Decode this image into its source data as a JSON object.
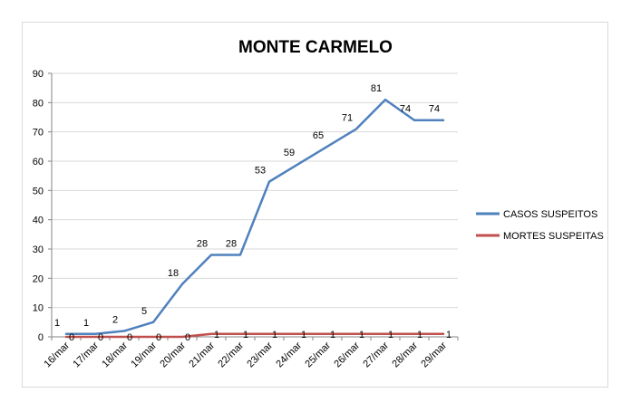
{
  "chart_data": {
    "type": "line",
    "title": "MONTE CARMELO",
    "xlabel": "",
    "ylabel": "",
    "categories": [
      "16/mar",
      "17/mar",
      "18/mar",
      "19/mar",
      "20/mar",
      "21/mar",
      "22/mar",
      "23/mar",
      "24/mar",
      "25/mar",
      "26/mar",
      "27/mar",
      "28/mar",
      "29/mar"
    ],
    "ylim": [
      0,
      90
    ],
    "yticks": [
      0,
      10,
      20,
      30,
      40,
      50,
      60,
      70,
      80,
      90
    ],
    "grid": true,
    "legend_position": "right",
    "series": [
      {
        "name": "CASOS SUSPEITOS",
        "color": "#4F81BD",
        "values": [
          1,
          1,
          2,
          5,
          18,
          28,
          28,
          53,
          59,
          65,
          71,
          81,
          74,
          74
        ],
        "labels": [
          "1",
          "1",
          "2",
          "5",
          "18",
          "28",
          "28",
          "53",
          "59",
          "65",
          "71",
          "81",
          "74",
          "74"
        ]
      },
      {
        "name": "MORTES SUSPEITAS",
        "color": "#C0504D",
        "values": [
          0,
          0,
          0,
          0,
          0,
          1,
          1,
          1,
          1,
          1,
          1,
          1,
          1,
          1
        ],
        "labels": [
          "0",
          "0",
          "0",
          "0",
          "0",
          "1",
          "1",
          "1",
          "1",
          "1",
          "1",
          "1",
          "1",
          "1"
        ]
      }
    ]
  }
}
